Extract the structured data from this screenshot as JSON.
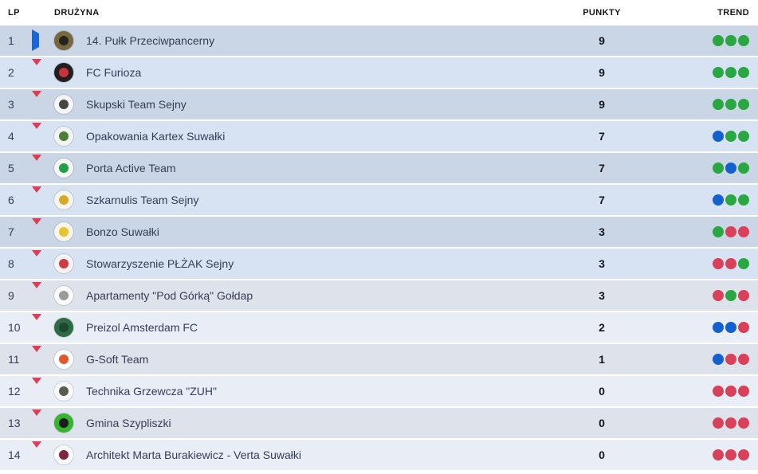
{
  "header": {
    "lp": "LP",
    "team": "DRUŻYNA",
    "points": "PUNKTY",
    "trend": "TREND"
  },
  "trend_colors": {
    "green": "#2aa743",
    "blue": "#1460cf",
    "red": "#d9415a"
  },
  "arrow_colors": {
    "right": "#1a66d4",
    "down": "#e23b54"
  },
  "row_colors": {
    "top_odd": "#cad6e5",
    "top_even": "#d7e2f3",
    "bottom_odd": "#dee3eb",
    "bottom_even": "#e9eef6"
  },
  "rows": [
    {
      "lp": "1",
      "move": "right",
      "team": "14. Pułk Przeciwpancerny",
      "points": "9",
      "trend": [
        "green",
        "green",
        "green"
      ],
      "logo": {
        "outer": "#77673c",
        "inner": "#26221c"
      }
    },
    {
      "lp": "2",
      "move": "down",
      "team": "FC Furioza",
      "points": "9",
      "trend": [
        "green",
        "green",
        "green"
      ],
      "logo": {
        "outer": "#221e1f",
        "inner": "#c8333b"
      }
    },
    {
      "lp": "3",
      "move": "down",
      "team": "Skupski Team Sejny",
      "points": "9",
      "trend": [
        "green",
        "green",
        "green"
      ],
      "logo": {
        "outer": "#f5f5f5",
        "inner": "#454545"
      }
    },
    {
      "lp": "4",
      "move": "down",
      "team": "Opakowania Kartex Suwałki",
      "points": "7",
      "trend": [
        "blue",
        "green",
        "green"
      ],
      "logo": {
        "outer": "#f2f4ef",
        "inner": "#4e7d3a"
      }
    },
    {
      "lp": "5",
      "move": "down",
      "team": "Porta Active Team",
      "points": "7",
      "trend": [
        "green",
        "blue",
        "green"
      ],
      "logo": {
        "outer": "#f5f7f5",
        "inner": "#21a049"
      }
    },
    {
      "lp": "6",
      "move": "down",
      "team": "Szkarnulis Team Sejny",
      "points": "7",
      "trend": [
        "blue",
        "green",
        "green"
      ],
      "logo": {
        "outer": "#f7f5ef",
        "inner": "#d8a827"
      }
    },
    {
      "lp": "7",
      "move": "down",
      "team": "Bonzo Suwałki",
      "points": "3",
      "trend": [
        "green",
        "red",
        "red"
      ],
      "logo": {
        "outer": "#f7f4ea",
        "inner": "#e8c530"
      }
    },
    {
      "lp": "8",
      "move": "down",
      "team": "Stowarzyszenie PŁŻAK Sejny",
      "points": "3",
      "trend": [
        "red",
        "red",
        "green"
      ],
      "logo": {
        "outer": "#f6f3f2",
        "inner": "#cf3b44"
      }
    },
    {
      "lp": "9",
      "move": "down",
      "team": "Apartamenty \"Pod Górką\" Gołdap",
      "points": "3",
      "trend": [
        "red",
        "green",
        "red"
      ],
      "logo": {
        "outer": "#fafafa",
        "inner": "#9a9a9a"
      }
    },
    {
      "lp": "10",
      "move": "down",
      "team": "Preizol Amsterdam FC",
      "points": "2",
      "trend": [
        "blue",
        "blue",
        "red"
      ],
      "logo": {
        "outer": "#2e6b45",
        "inner": "#1d4a2f"
      }
    },
    {
      "lp": "11",
      "move": "down",
      "team": "G-Soft Team",
      "points": "1",
      "trend": [
        "blue",
        "red",
        "red"
      ],
      "logo": {
        "outer": "#ffffff",
        "inner": "#e2572b"
      }
    },
    {
      "lp": "12",
      "move": "down",
      "team": "Technika Grzewcza \"ZUH\"",
      "points": "0",
      "trend": [
        "red",
        "red",
        "red"
      ],
      "logo": {
        "outer": "#f8f8f8",
        "inner": "#5a5a52"
      }
    },
    {
      "lp": "13",
      "move": "down",
      "team": "Gmina Szypliszki",
      "points": "0",
      "trend": [
        "red",
        "red",
        "red"
      ],
      "logo": {
        "outer": "#35b52c",
        "inner": "#1c1c1c"
      }
    },
    {
      "lp": "14",
      "move": "down",
      "team": "Architekt Marta Burakiewicz - Verta Suwałki",
      "points": "0",
      "trend": [
        "red",
        "red",
        "red"
      ],
      "logo": {
        "outer": "#fbfbfb",
        "inner": "#7e2740"
      }
    }
  ]
}
